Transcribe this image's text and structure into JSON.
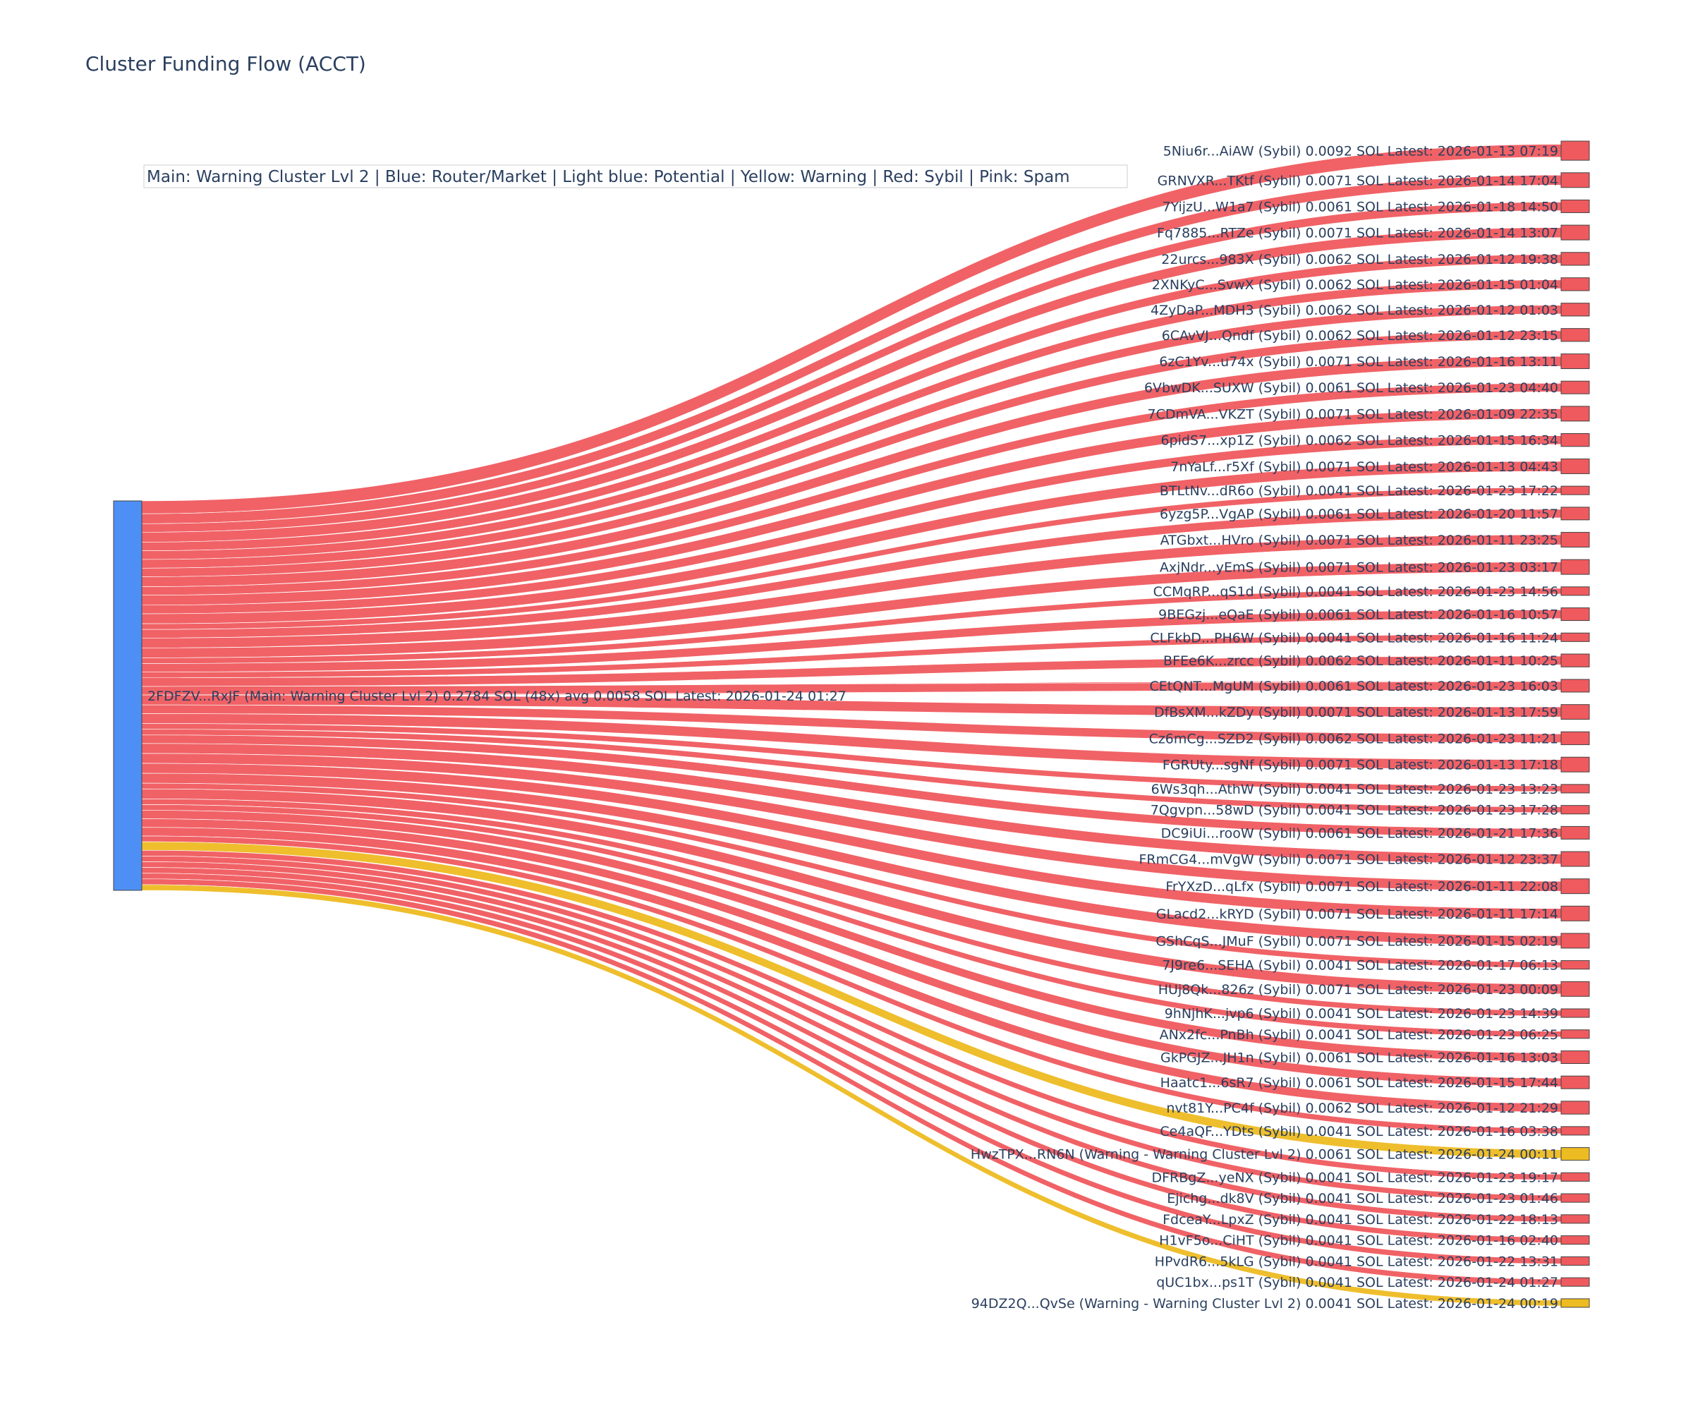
{
  "chart_data": {
    "type": "sankey",
    "title": "Cluster Funding Flow (ACCT)",
    "annotation": "Main: Warning Cluster Lvl 2  |  Blue: Router/Market | Light blue: Potential | Yellow: Warning | Red: Sybil | Pink: Spam",
    "colors": {
      "source_node": "#4d8ff5",
      "sybil": "#ef5a5e",
      "warning": "#edbb22",
      "node_border": "#444444"
    },
    "source": {
      "label": "2FDFZV...RxJF (Main: Warning Cluster Lvl 2) 0.2784 SOL (48x) avg 0.0058 SOL Latest: 2026-01-24 01:27",
      "total_sol": 0.2784,
      "count": 48
    },
    "targets": [
      {
        "label": "5Niu6r...AiAW (Sybil) 0.0092 SOL Latest: 2026-01-13 07:19",
        "value": 0.0092,
        "kind": "sybil"
      },
      {
        "label": "GRNVXR...TKtf (Sybil) 0.0071 SOL Latest: 2026-01-14 17:04",
        "value": 0.0071,
        "kind": "sybil"
      },
      {
        "label": "7YijzU...W1a7 (Sybil) 0.0061 SOL Latest: 2026-01-18 14:50",
        "value": 0.0061,
        "kind": "sybil"
      },
      {
        "label": "Fq7885...RTZe (Sybil) 0.0071 SOL Latest: 2026-01-14 13:07",
        "value": 0.0071,
        "kind": "sybil"
      },
      {
        "label": "22urcs...983X (Sybil) 0.0062 SOL Latest: 2026-01-12 19:38",
        "value": 0.0062,
        "kind": "sybil"
      },
      {
        "label": "2XNKyC...SvwX (Sybil) 0.0062 SOL Latest: 2026-01-15 01:04",
        "value": 0.0062,
        "kind": "sybil"
      },
      {
        "label": "4ZyDaP...MDH3 (Sybil) 0.0062 SOL Latest: 2026-01-12 01:03",
        "value": 0.0062,
        "kind": "sybil"
      },
      {
        "label": "6CAvVJ...Qndf (Sybil) 0.0062 SOL Latest: 2026-01-12 23:15",
        "value": 0.0062,
        "kind": "sybil"
      },
      {
        "label": "6zC1Yv...u74x (Sybil) 0.0071 SOL Latest: 2026-01-16 13:11",
        "value": 0.0071,
        "kind": "sybil"
      },
      {
        "label": "6VbwDK...SUXW (Sybil) 0.0061 SOL Latest: 2026-01-23 04:40",
        "value": 0.0061,
        "kind": "sybil"
      },
      {
        "label": "7CDmVA...VKZT (Sybil) 0.0071 SOL Latest: 2026-01-09 22:35",
        "value": 0.0071,
        "kind": "sybil"
      },
      {
        "label": "6pidS7...xp1Z (Sybil) 0.0062 SOL Latest: 2026-01-15 16:34",
        "value": 0.0062,
        "kind": "sybil"
      },
      {
        "label": "7nYaLf...r5Xf (Sybil) 0.0071 SOL Latest: 2026-01-13 04:43",
        "value": 0.0071,
        "kind": "sybil"
      },
      {
        "label": "BTLtNv...dR6o (Sybil) 0.0041 SOL Latest: 2026-01-23 17:22",
        "value": 0.0041,
        "kind": "sybil"
      },
      {
        "label": "6yzg5P...VgAP (Sybil) 0.0061 SOL Latest: 2026-01-20 11:57",
        "value": 0.0061,
        "kind": "sybil"
      },
      {
        "label": "ATGbxt...HVro (Sybil) 0.0071 SOL Latest: 2026-01-11 23:25",
        "value": 0.0071,
        "kind": "sybil"
      },
      {
        "label": "AxjNdr...yEmS (Sybil) 0.0071 SOL Latest: 2026-01-23 03:17",
        "value": 0.0071,
        "kind": "sybil"
      },
      {
        "label": "CCMqRP...qS1d (Sybil) 0.0041 SOL Latest: 2026-01-23 14:56",
        "value": 0.0041,
        "kind": "sybil"
      },
      {
        "label": "9BEGzj...eQaE (Sybil) 0.0061 SOL Latest: 2026-01-16 10:57",
        "value": 0.0061,
        "kind": "sybil"
      },
      {
        "label": "CLFkbD...PH6W (Sybil) 0.0041 SOL Latest: 2026-01-16 11:24",
        "value": 0.0041,
        "kind": "sybil"
      },
      {
        "label": "BFEe6K...zrcc (Sybil) 0.0062 SOL Latest: 2026-01-11 10:25",
        "value": 0.0062,
        "kind": "sybil"
      },
      {
        "label": "CEtQNT...MgUM (Sybil) 0.0061 SOL Latest: 2026-01-23 16:03",
        "value": 0.0061,
        "kind": "sybil"
      },
      {
        "label": "DfBsXM...kZDy (Sybil) 0.0071 SOL Latest: 2026-01-13 17:59",
        "value": 0.0071,
        "kind": "sybil"
      },
      {
        "label": "Cz6mCg...SZD2 (Sybil) 0.0062 SOL Latest: 2026-01-23 11:21",
        "value": 0.0062,
        "kind": "sybil"
      },
      {
        "label": "FGRUty...sgNf (Sybil) 0.0071 SOL Latest: 2026-01-13 17:18",
        "value": 0.0071,
        "kind": "sybil"
      },
      {
        "label": "6Ws3qh...AthW (Sybil) 0.0041 SOL Latest: 2026-01-23 13:23",
        "value": 0.0041,
        "kind": "sybil"
      },
      {
        "label": "7Qgvpn...58wD (Sybil) 0.0041 SOL Latest: 2026-01-23 17:28",
        "value": 0.0041,
        "kind": "sybil"
      },
      {
        "label": "DC9iUi...rooW (Sybil) 0.0061 SOL Latest: 2026-01-21 17:36",
        "value": 0.0061,
        "kind": "sybil"
      },
      {
        "label": "FRmCG4...mVgW (Sybil) 0.0071 SOL Latest: 2026-01-12 23:37",
        "value": 0.0071,
        "kind": "sybil"
      },
      {
        "label": "FrYXzD...qLfx (Sybil) 0.0071 SOL Latest: 2026-01-11 22:08",
        "value": 0.0071,
        "kind": "sybil"
      },
      {
        "label": "GLacd2...kRYD (Sybil) 0.0071 SOL Latest: 2026-01-11 17:14",
        "value": 0.0071,
        "kind": "sybil"
      },
      {
        "label": "GShCqS...JMuF (Sybil) 0.0071 SOL Latest: 2026-01-15 02:19",
        "value": 0.0071,
        "kind": "sybil"
      },
      {
        "label": "7J9re6...SEHA (Sybil) 0.0041 SOL Latest: 2026-01-17 06:13",
        "value": 0.0041,
        "kind": "sybil"
      },
      {
        "label": "HUj8Qk...826z (Sybil) 0.0071 SOL Latest: 2026-01-23 00:09",
        "value": 0.0071,
        "kind": "sybil"
      },
      {
        "label": "9hNjhK...jvp6 (Sybil) 0.0041 SOL Latest: 2026-01-23 14:39",
        "value": 0.0041,
        "kind": "sybil"
      },
      {
        "label": "ANx2fc...PnBh (Sybil) 0.0041 SOL Latest: 2026-01-23 06:25",
        "value": 0.0041,
        "kind": "sybil"
      },
      {
        "label": "GkPGJZ...JH1n (Sybil) 0.0061 SOL Latest: 2026-01-16 13:03",
        "value": 0.0061,
        "kind": "sybil"
      },
      {
        "label": "Haatc1...6sR7 (Sybil) 0.0061 SOL Latest: 2026-01-15 17:44",
        "value": 0.0061,
        "kind": "sybil"
      },
      {
        "label": "nvt81Y...PC4f (Sybil) 0.0062 SOL Latest: 2026-01-12 21:29",
        "value": 0.0062,
        "kind": "sybil"
      },
      {
        "label": "Ce4aQF...YDts (Sybil) 0.0041 SOL Latest: 2026-01-16 03:38",
        "value": 0.0041,
        "kind": "sybil"
      },
      {
        "label": "HwzTPX...RN6N (Warning - Warning Cluster Lvl 2) 0.0061 SOL Latest: 2026-01-24 00:11",
        "value": 0.0061,
        "kind": "warning"
      },
      {
        "label": "DFRBgZ...yeNX (Sybil) 0.0041 SOL Latest: 2026-01-23 19:17",
        "value": 0.0041,
        "kind": "sybil"
      },
      {
        "label": "Ejichg...dk8V (Sybil) 0.0041 SOL Latest: 2026-01-23 01:46",
        "value": 0.0041,
        "kind": "sybil"
      },
      {
        "label": "FdceaY...LpxZ (Sybil) 0.0041 SOL Latest: 2026-01-22 18:13",
        "value": 0.0041,
        "kind": "sybil"
      },
      {
        "label": "H1vF5o...CiHT (Sybil) 0.0041 SOL Latest: 2026-01-16 02:40",
        "value": 0.0041,
        "kind": "sybil"
      },
      {
        "label": "HPvdR6...5kLG (Sybil) 0.0041 SOL Latest: 2026-01-22 13:31",
        "value": 0.0041,
        "kind": "sybil"
      },
      {
        "label": "qUC1bx...ps1T (Sybil) 0.0041 SOL Latest: 2026-01-24 01:27",
        "value": 0.0041,
        "kind": "sybil"
      },
      {
        "label": "94DZ2Q...QvSe (Warning - Warning Cluster Lvl 2) 0.0041 SOL Latest: 2026-01-24 00:19",
        "value": 0.0041,
        "kind": "warning"
      }
    ]
  }
}
